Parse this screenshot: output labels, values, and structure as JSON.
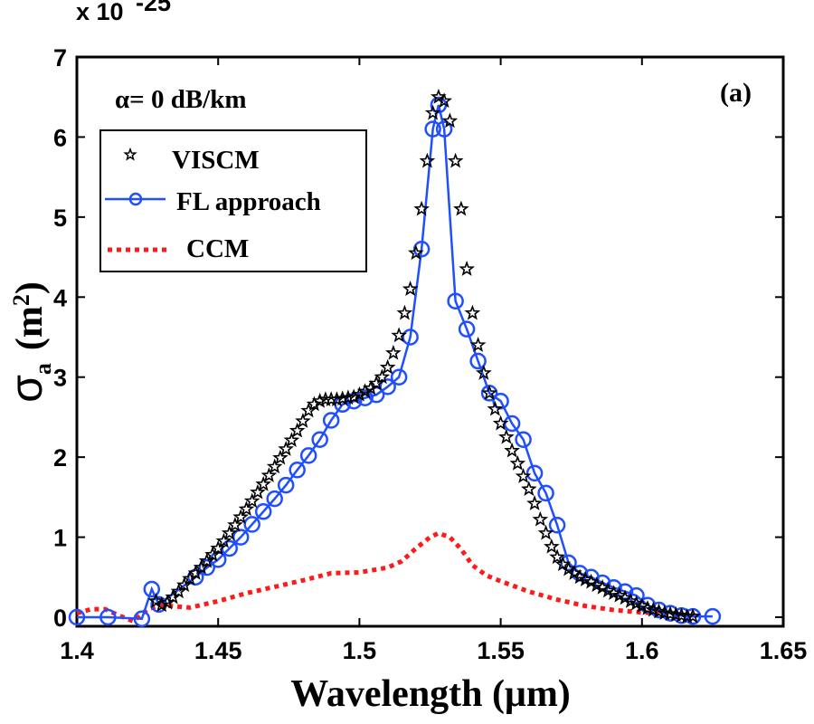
{
  "chart_data": {
    "type": "line",
    "title": "",
    "panel_label": "(a)",
    "annotation": "α=  0 dB/km",
    "xlabel": "Wavelength  (μm)",
    "ylabel": "σa  (m²)",
    "y_exponent_label": "x 10",
    "y_exponent_power": "-25",
    "xlim": [
      1.4,
      1.65
    ],
    "ylim": [
      0,
      7
    ],
    "xticks": [
      1.4,
      1.45,
      1.5,
      1.55,
      1.6,
      1.65
    ],
    "xtick_labels": [
      "1.4",
      "1.45",
      "1.5",
      "1.55",
      "1.6",
      "1.65"
    ],
    "yticks": [
      0,
      1,
      2,
      3,
      4,
      5,
      6,
      7
    ],
    "ytick_labels": [
      "0",
      "1",
      "2",
      "3",
      "4",
      "5",
      "6",
      "7"
    ],
    "grid": false,
    "legend_position": "top-left",
    "series": [
      {
        "name": "VISCM",
        "color": "#000000",
        "style": "star-markers",
        "x": [
          1.428,
          1.43,
          1.432,
          1.434,
          1.436,
          1.438,
          1.44,
          1.442,
          1.444,
          1.446,
          1.448,
          1.45,
          1.452,
          1.454,
          1.456,
          1.458,
          1.46,
          1.462,
          1.464,
          1.466,
          1.468,
          1.47,
          1.472,
          1.474,
          1.476,
          1.478,
          1.48,
          1.482,
          1.484,
          1.486,
          1.488,
          1.49,
          1.492,
          1.494,
          1.496,
          1.498,
          1.5,
          1.502,
          1.504,
          1.506,
          1.508,
          1.51,
          1.512,
          1.514,
          1.516,
          1.518,
          1.52,
          1.522,
          1.524,
          1.526,
          1.528,
          1.53,
          1.532,
          1.534,
          1.536,
          1.538,
          1.54,
          1.542,
          1.544,
          1.546,
          1.548,
          1.55,
          1.552,
          1.554,
          1.556,
          1.558,
          1.56,
          1.562,
          1.564,
          1.566,
          1.568,
          1.57,
          1.572,
          1.574,
          1.576,
          1.578,
          1.58,
          1.582,
          1.584,
          1.586,
          1.588,
          1.59,
          1.592,
          1.594,
          1.596,
          1.598,
          1.6,
          1.602,
          1.604,
          1.606,
          1.608,
          1.61,
          1.612,
          1.614,
          1.616,
          1.618
        ],
        "y": [
          0.2,
          0.15,
          0.18,
          0.25,
          0.32,
          0.4,
          0.48,
          0.55,
          0.62,
          0.7,
          0.78,
          0.86,
          0.95,
          1.05,
          1.15,
          1.25,
          1.35,
          1.45,
          1.56,
          1.66,
          1.77,
          1.88,
          1.99,
          2.1,
          2.21,
          2.33,
          2.45,
          2.58,
          2.66,
          2.7,
          2.72,
          2.72,
          2.72,
          2.73,
          2.74,
          2.75,
          2.78,
          2.82,
          2.86,
          2.92,
          3.0,
          3.12,
          3.3,
          3.52,
          3.8,
          4.1,
          4.55,
          5.1,
          5.7,
          6.3,
          6.5,
          6.45,
          6.2,
          5.7,
          5.1,
          4.35,
          3.8,
          3.4,
          3.05,
          2.8,
          2.6,
          2.42,
          2.25,
          2.08,
          1.92,
          1.76,
          1.6,
          1.42,
          1.22,
          1.05,
          0.88,
          0.75,
          0.66,
          0.6,
          0.55,
          0.5,
          0.47,
          0.44,
          0.4,
          0.37,
          0.33,
          0.3,
          0.27,
          0.24,
          0.2,
          0.17,
          0.14,
          0.11,
          0.09,
          0.07,
          0.05,
          0.04,
          0.03,
          0.02,
          0.01,
          0.01
        ]
      },
      {
        "name": "FL approach",
        "color": "#1f4fff",
        "style": "line-circle-markers",
        "x": [
          1.4,
          1.411,
          1.423,
          1.4265,
          1.429,
          1.442,
          1.446,
          1.45,
          1.454,
          1.458,
          1.462,
          1.466,
          1.47,
          1.474,
          1.478,
          1.482,
          1.486,
          1.49,
          1.494,
          1.498,
          1.502,
          1.506,
          1.51,
          1.514,
          1.518,
          1.522,
          1.526,
          1.528,
          1.53,
          1.534,
          1.538,
          1.542,
          1.546,
          1.55,
          1.554,
          1.558,
          1.562,
          1.566,
          1.57,
          1.574,
          1.578,
          1.582,
          1.586,
          1.59,
          1.594,
          1.598,
          1.602,
          1.606,
          1.61,
          1.614,
          1.618,
          1.625
        ],
        "y": [
          0.0,
          0.0,
          -0.02,
          0.35,
          0.16,
          0.5,
          0.62,
          0.72,
          0.86,
          1.0,
          1.16,
          1.32,
          1.48,
          1.65,
          1.84,
          2.02,
          2.22,
          2.46,
          2.66,
          2.7,
          2.74,
          2.78,
          2.88,
          3.0,
          3.5,
          4.6,
          6.1,
          6.4,
          6.1,
          3.95,
          3.6,
          3.2,
          2.8,
          2.7,
          2.42,
          2.22,
          1.8,
          1.55,
          1.15,
          0.68,
          0.55,
          0.5,
          0.43,
          0.37,
          0.32,
          0.27,
          0.15,
          0.09,
          0.05,
          0.02,
          0.01,
          0.01
        ]
      },
      {
        "name": "CCM",
        "color": "#ff1a1a",
        "style": "dotted-line",
        "x": [
          1.4,
          1.405,
          1.41,
          1.415,
          1.42,
          1.425,
          1.43,
          1.44,
          1.45,
          1.46,
          1.47,
          1.48,
          1.49,
          1.5,
          1.51,
          1.515,
          1.52,
          1.525,
          1.528,
          1.532,
          1.536,
          1.54,
          1.545,
          1.55,
          1.56,
          1.57,
          1.58,
          1.59,
          1.6,
          1.61,
          1.62
        ],
        "y": [
          0.05,
          0.1,
          0.1,
          0.02,
          -0.05,
          0.1,
          0.15,
          0.12,
          0.2,
          0.3,
          0.38,
          0.46,
          0.55,
          0.56,
          0.62,
          0.7,
          0.86,
          1.0,
          1.05,
          1.0,
          0.85,
          0.65,
          0.52,
          0.45,
          0.32,
          0.22,
          0.14,
          0.09,
          0.06,
          0.04,
          0.02
        ]
      }
    ]
  }
}
